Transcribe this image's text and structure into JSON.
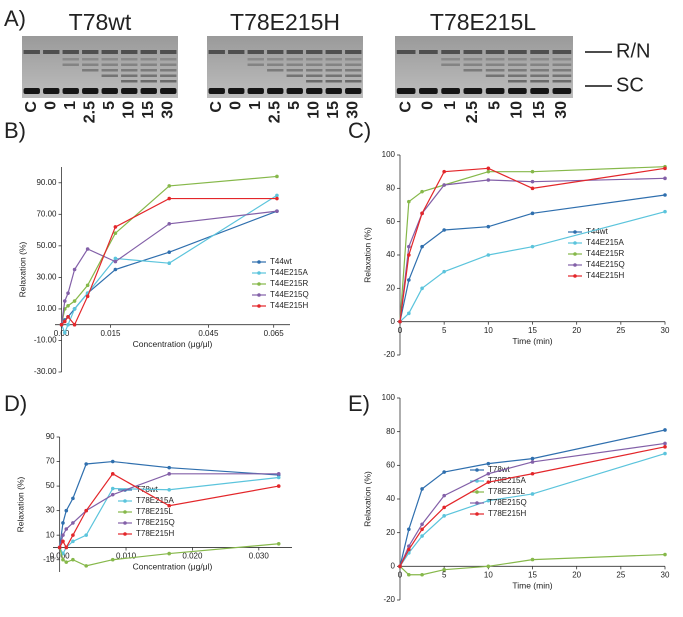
{
  "figure_a": {
    "panel": "A)",
    "gels": [
      "T78wt",
      "T78E215H",
      "T78E215L"
    ],
    "lanes": [
      "C",
      "0",
      "1",
      "2.5",
      "5",
      "10",
      "15",
      "30"
    ],
    "bands": [
      "R/N",
      "SC"
    ]
  },
  "chart_data": [
    {
      "type": "line",
      "panel": "B)",
      "xlabel": "Concentration (μg/μl)",
      "ylabel": "Relaxation (%)",
      "x": [
        0,
        0.001,
        0.002,
        0.004,
        0.008,
        0.0165,
        0.033,
        0.066
      ],
      "xlim": [
        -0.002,
        0.07
      ],
      "xticks": [
        {
          "value": 0,
          "label": "0.00"
        },
        0.015,
        0.045,
        0.065
      ],
      "ylim": [
        -30,
        100
      ],
      "yticks": [
        {
          "value": -30,
          "label": "-30.00"
        },
        {
          "value": -10,
          "label": "-10.00"
        },
        {
          "value": 10,
          "label": "10.00"
        },
        {
          "value": 30,
          "label": "30.00"
        },
        {
          "value": 50,
          "label": "50.00"
        },
        {
          "value": 70,
          "label": "70.00"
        },
        {
          "value": 90,
          "label": "90.00"
        }
      ],
      "legend": "right",
      "series": [
        {
          "name": "T44wt",
          "color": "#2f6fae",
          "values": [
            0,
            3,
            5,
            10,
            20,
            35,
            46,
            72
          ]
        },
        {
          "name": "T44E215A",
          "color": "#5bc4dc",
          "values": [
            0,
            -5,
            0,
            10,
            20,
            42,
            39,
            82
          ]
        },
        {
          "name": "T44E215R",
          "color": "#86b84a",
          "values": [
            0,
            10,
            12,
            15,
            25,
            58,
            88,
            94
          ]
        },
        {
          "name": "T44E215Q",
          "color": "#8360a8",
          "values": [
            0,
            15,
            20,
            35,
            48,
            40,
            64,
            72
          ]
        },
        {
          "name": "T44E215H",
          "color": "#e3262a",
          "values": [
            0,
            2,
            5,
            0,
            18,
            62,
            80,
            80
          ]
        }
      ]
    },
    {
      "type": "line",
      "panel": "C)",
      "xlabel": "Time (min)",
      "ylabel": "Relaxation (%)",
      "x": [
        0,
        1,
        2.5,
        5,
        10,
        15,
        30
      ],
      "xlim": [
        0,
        30
      ],
      "xticks": [
        0,
        5,
        10,
        15,
        20,
        25,
        30
      ],
      "ylim": [
        -20,
        100
      ],
      "yticks": [
        -20,
        0,
        20,
        40,
        60,
        80,
        100
      ],
      "legend": "right",
      "series": [
        {
          "name": "T44wt",
          "color": "#2f6fae",
          "values": [
            0,
            25,
            45,
            55,
            57,
            65,
            76
          ]
        },
        {
          "name": "T44E215A",
          "color": "#5bc4dc",
          "values": [
            0,
            5,
            20,
            30,
            40,
            45,
            66
          ]
        },
        {
          "name": "T44E215R",
          "color": "#86b84a",
          "values": [
            0,
            72,
            78,
            82,
            90,
            90,
            93
          ]
        },
        {
          "name": "T44E215Q",
          "color": "#8360a8",
          "values": [
            0,
            45,
            65,
            82,
            85,
            84,
            86
          ]
        },
        {
          "name": "T44E215H",
          "color": "#e3262a",
          "values": [
            0,
            40,
            65,
            90,
            92,
            80,
            92
          ]
        }
      ]
    },
    {
      "type": "line",
      "panel": "D)",
      "xlabel": "Concentration (μg/μl)",
      "ylabel": "Relaxation (%)",
      "x": [
        0,
        0.0005,
        0.001,
        0.002,
        0.004,
        0.008,
        0.0165,
        0.033
      ],
      "xlim": [
        -0.001,
        0.035
      ],
      "xticks": [
        {
          "value": 0,
          "label": "0.000"
        },
        {
          "value": 0.01,
          "label": "0.010"
        },
        {
          "value": 0.02,
          "label": "0.020"
        },
        {
          "value": 0.03,
          "label": "0.030"
        }
      ],
      "ylim": [
        -20,
        90
      ],
      "yticks": [
        -10,
        10,
        30,
        50,
        70,
        90
      ],
      "legend": "left",
      "series": [
        {
          "name": "T78wt",
          "color": "#2f6fae",
          "values": [
            0,
            20,
            30,
            40,
            68,
            70,
            65,
            59
          ]
        },
        {
          "name": "T78E215A",
          "color": "#5bc4dc",
          "values": [
            0,
            -5,
            0,
            5,
            10,
            48,
            47,
            57
          ]
        },
        {
          "name": "T78E215L",
          "color": "#86b84a",
          "values": [
            0,
            -10,
            -12,
            -10,
            -15,
            -10,
            -5,
            3
          ]
        },
        {
          "name": "T78E215Q",
          "color": "#8360a8",
          "values": [
            0,
            10,
            15,
            20,
            30,
            43,
            60,
            60
          ]
        },
        {
          "name": "T78E215H",
          "color": "#e3262a",
          "values": [
            0,
            5,
            0,
            10,
            30,
            60,
            34,
            50
          ]
        }
      ]
    },
    {
      "type": "line",
      "panel": "E)",
      "xlabel": "Time (min)",
      "ylabel": "Relaxation (%)",
      "x": [
        0,
        1,
        2.5,
        5,
        10,
        15,
        30
      ],
      "xlim": [
        0,
        30
      ],
      "xticks": [
        0,
        5,
        10,
        15,
        20,
        25,
        30
      ],
      "ylim": [
        -20,
        100
      ],
      "yticks": [
        -20,
        0,
        20,
        40,
        60,
        80,
        100
      ],
      "legend": "left",
      "series": [
        {
          "name": "T78wt",
          "color": "#2f6fae",
          "values": [
            0,
            22,
            46,
            56,
            61,
            64,
            81
          ]
        },
        {
          "name": "T78E215A",
          "color": "#5bc4dc",
          "values": [
            0,
            8,
            18,
            30,
            39,
            43,
            67
          ]
        },
        {
          "name": "T78E215L",
          "color": "#86b84a",
          "values": [
            0,
            -5,
            -5,
            -2,
            0,
            4,
            7
          ]
        },
        {
          "name": "T78E215Q",
          "color": "#8360a8",
          "values": [
            0,
            12,
            25,
            42,
            55,
            62,
            73
          ]
        },
        {
          "name": "T78E215H",
          "color": "#e3262a",
          "values": [
            0,
            10,
            22,
            35,
            50,
            55,
            71
          ]
        }
      ]
    }
  ]
}
